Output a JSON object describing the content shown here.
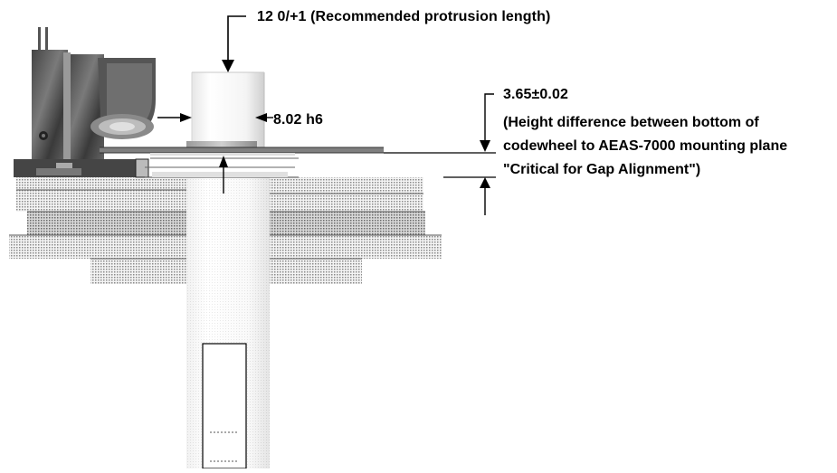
{
  "labels": {
    "protrusion": "12  0/+1 (Recommended protrusion length)",
    "shaft_diameter": "8.02 h6",
    "height_tolerance": "3.65±0.02",
    "height_note_lines": [
      "(Height difference between bottom of",
      "codewheel to AEAS-7000 mounting plane",
      "\"Critical for Gap Alignment\")"
    ]
  }
}
